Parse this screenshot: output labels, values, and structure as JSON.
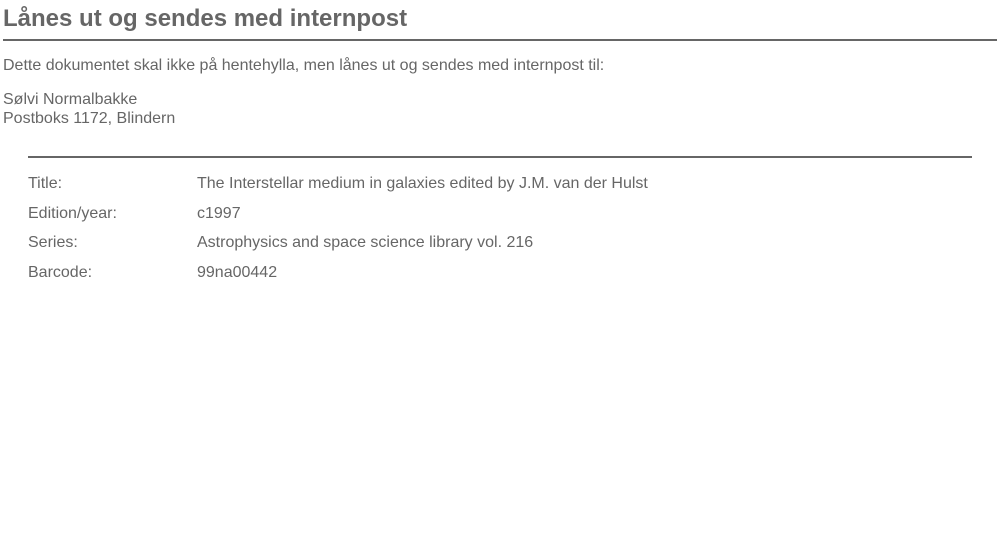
{
  "header": {
    "title": "Lånes ut og sendes med internpost"
  },
  "intro": "Dette dokumentet skal ikke på hentehylla, men lånes ut og sendes med internpost til:",
  "recipient": {
    "name": "Sølvi Normalbakke",
    "address": "Postboks 1172, Blindern"
  },
  "details": [
    {
      "label": "Title:",
      "value": "The Interstellar medium in galaxies edited by J.M. van der Hulst"
    },
    {
      "label": "Edition/year:",
      "value": "c1997"
    },
    {
      "label": "Series:",
      "value": "Astrophysics and space science library vol. 216"
    },
    {
      "label": "Barcode:",
      "value": "99na00442"
    }
  ]
}
